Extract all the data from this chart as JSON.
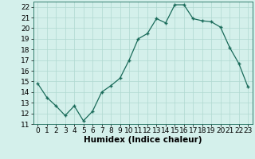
{
  "x": [
    0,
    1,
    2,
    3,
    4,
    5,
    6,
    7,
    8,
    9,
    10,
    11,
    12,
    13,
    14,
    15,
    16,
    17,
    18,
    19,
    20,
    21,
    22,
    23
  ],
  "y": [
    14.8,
    13.5,
    12.7,
    11.8,
    12.7,
    11.3,
    12.2,
    14.0,
    14.6,
    15.3,
    17.0,
    19.0,
    19.5,
    20.9,
    20.5,
    22.2,
    22.2,
    20.9,
    20.7,
    20.6,
    20.1,
    18.2,
    16.7,
    14.5
  ],
  "line_color": "#1a6b5a",
  "marker": "+",
  "bg_color": "#d4f0eb",
  "grid_color": "#b0d8d0",
  "xlabel": "Humidex (Indice chaleur)",
  "xlim": [
    -0.5,
    23.5
  ],
  "ylim": [
    11,
    22.5
  ],
  "yticks": [
    11,
    12,
    13,
    14,
    15,
    16,
    17,
    18,
    19,
    20,
    21,
    22
  ],
  "xticks": [
    0,
    1,
    2,
    3,
    4,
    5,
    6,
    7,
    8,
    9,
    10,
    11,
    12,
    13,
    14,
    15,
    16,
    17,
    18,
    19,
    20,
    21,
    22,
    23
  ],
  "tick_fontsize": 6.5,
  "label_fontsize": 7.5
}
